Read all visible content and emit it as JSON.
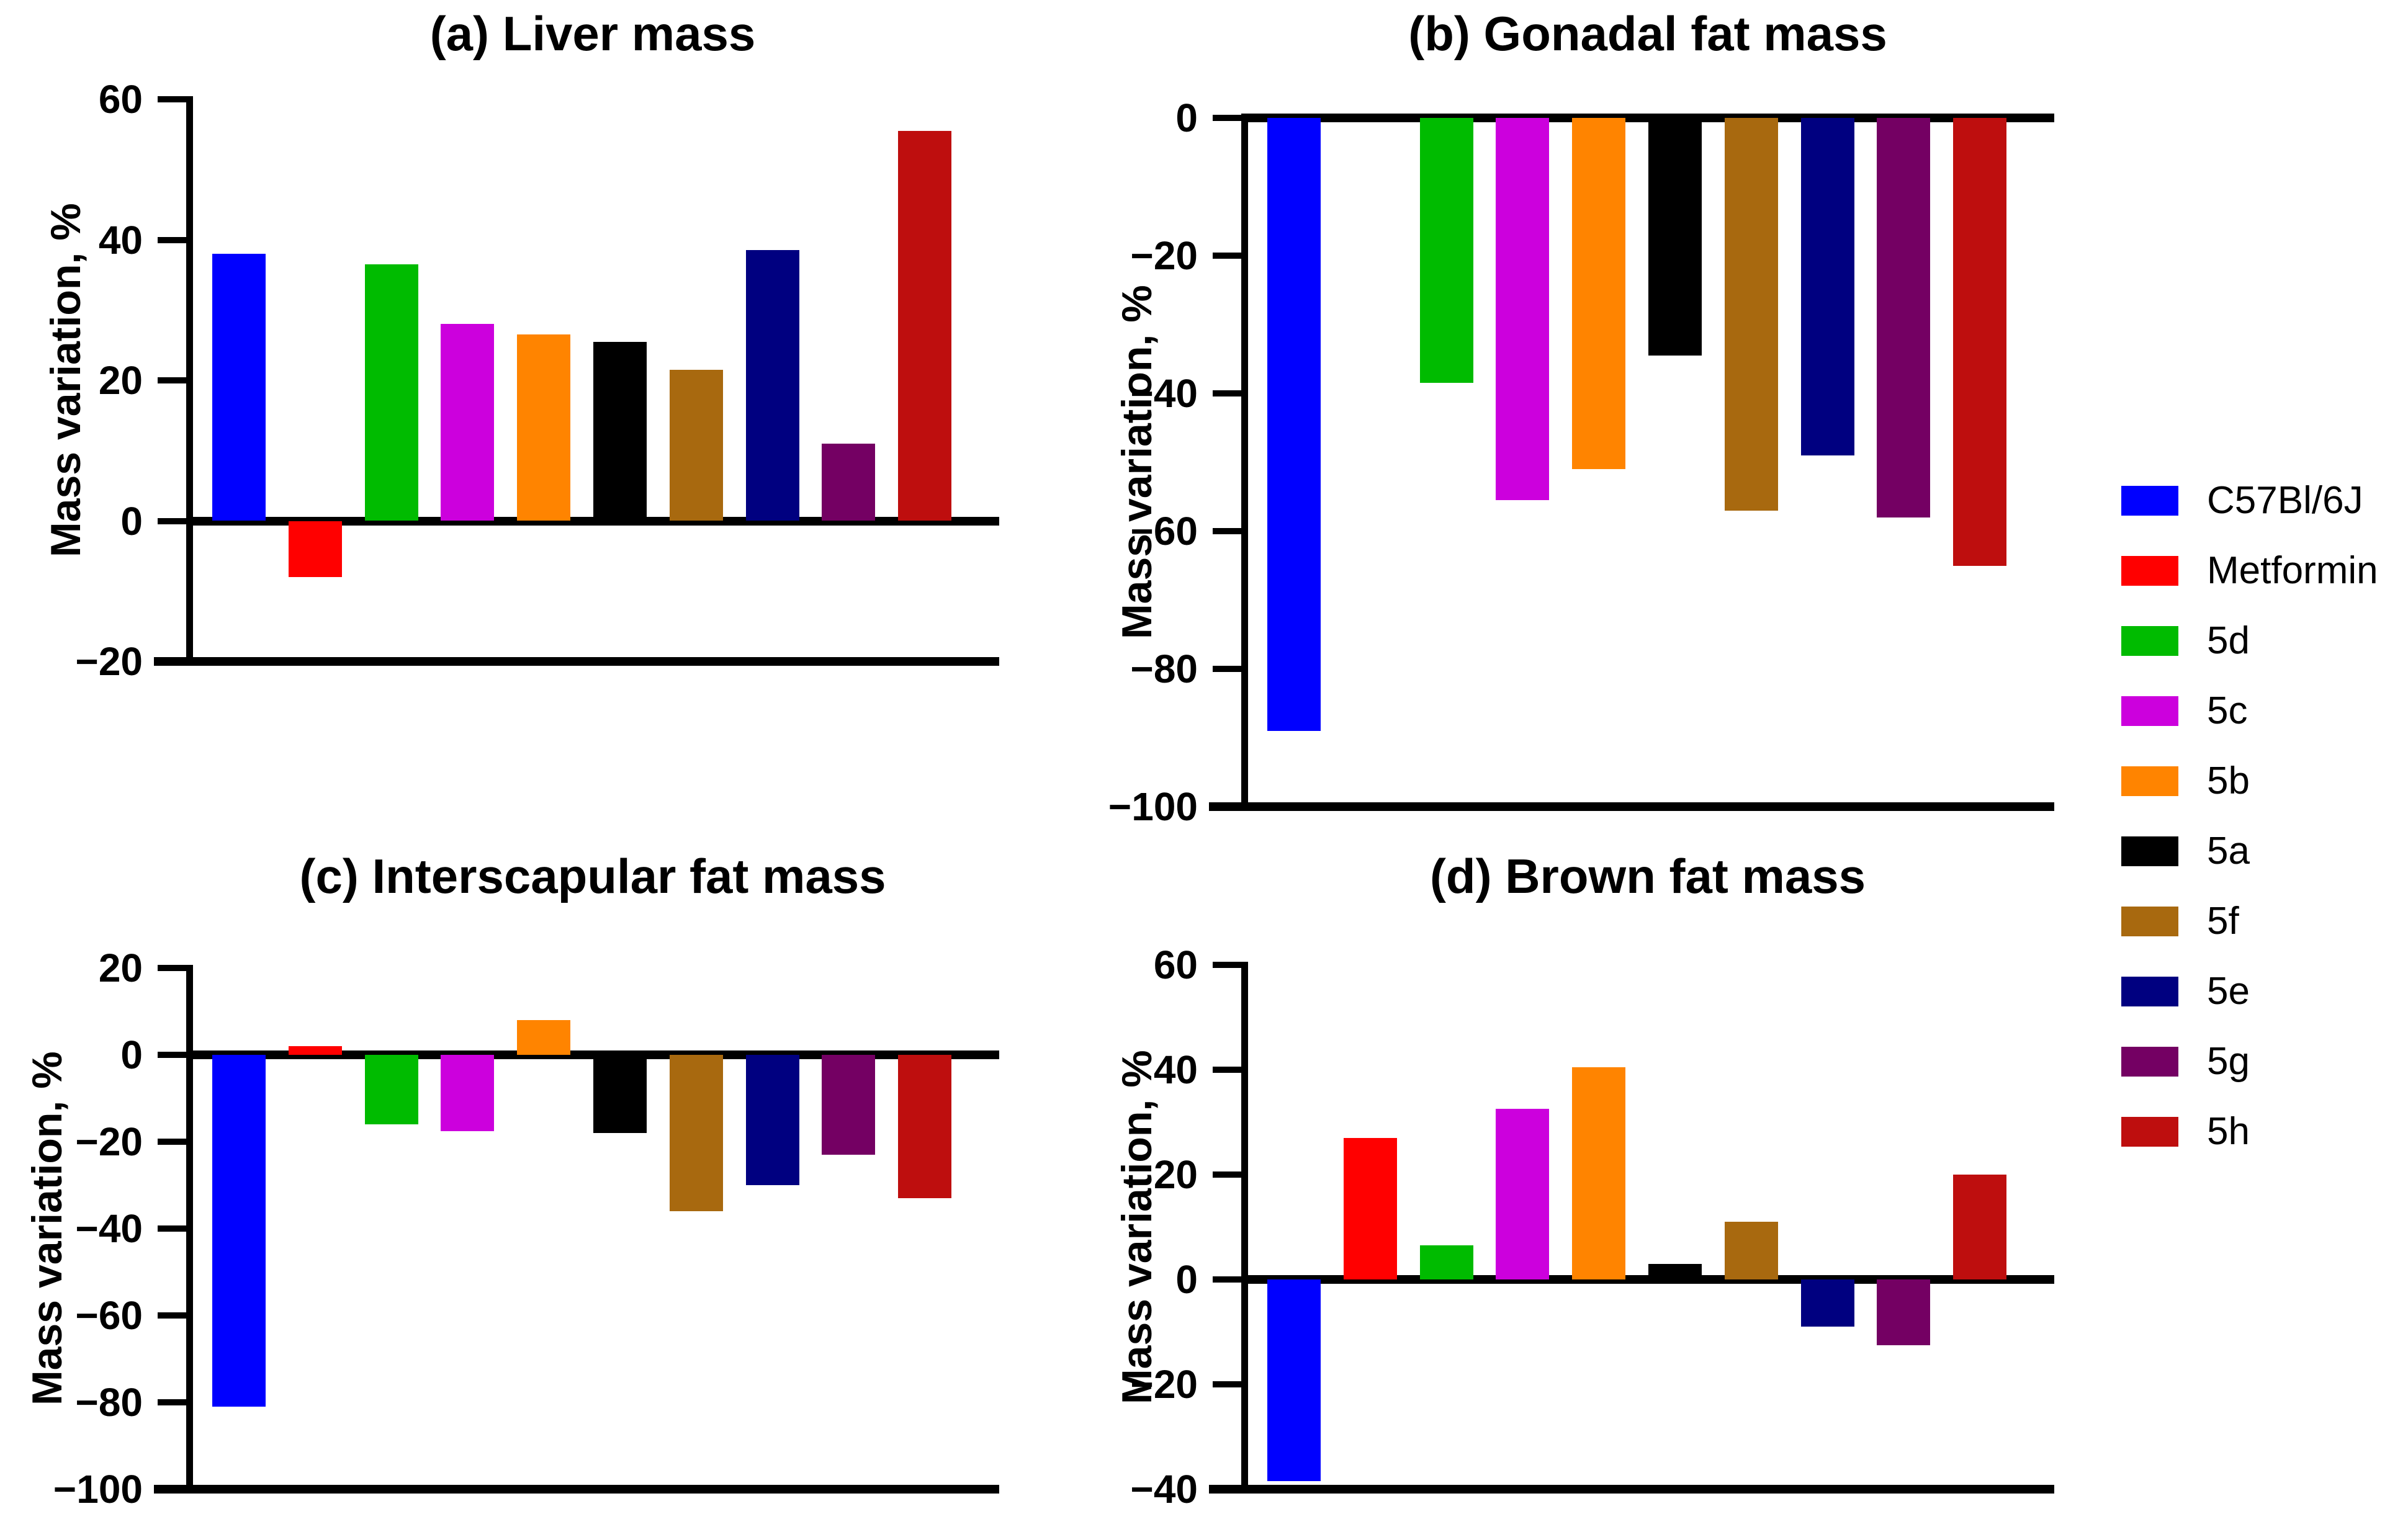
{
  "figure": {
    "legend": {
      "entries": [
        {
          "label": "C57Bl/6J",
          "color": "#0000FF"
        },
        {
          "label": "Metformin",
          "color": "#FF0000"
        },
        {
          "label": "5d",
          "color": "#00BB00"
        },
        {
          "label": "5c",
          "color": "#CC00DD"
        },
        {
          "label": "5b",
          "color": "#FF8400"
        },
        {
          "label": "5a",
          "color": "#000000"
        },
        {
          "label": "5f",
          "color": "#A8690F"
        },
        {
          "label": "5e",
          "color": "#000080"
        },
        {
          "label": "5g",
          "color": "#740063"
        },
        {
          "label": "5h",
          "color": "#BE0E0E"
        }
      ]
    }
  },
  "chart_data": [
    {
      "type": "bar",
      "title": "(a) Liver mass",
      "ylabel": "Mass variation, %",
      "categories": [
        "C57Bl/6J",
        "Metformin",
        "5d",
        "5c",
        "5b",
        "5a",
        "5f",
        "5e",
        "5g",
        "5h"
      ],
      "values": [
        38,
        -8,
        36.5,
        28,
        26.5,
        25.5,
        21.5,
        38.5,
        11,
        55.5
      ],
      "ylim": [
        -20,
        60
      ],
      "yticks": [
        60,
        40,
        20,
        0,
        -20
      ],
      "grid": false,
      "legend_position": "right-of-figure"
    },
    {
      "type": "bar",
      "title": "(b) Gonadal fat mass",
      "ylabel": "Mass variation, %",
      "categories": [
        "C57Bl/6J",
        "Metformin",
        "5d",
        "5c",
        "5b",
        "5a",
        "5f",
        "5e",
        "5g",
        "5h"
      ],
      "values": [
        -89,
        0,
        -38.5,
        -55.5,
        -51,
        -34.5,
        -57,
        -49,
        -58,
        -65
      ],
      "ylim": [
        -100,
        0
      ],
      "yticks": [
        0,
        -20,
        -40,
        -60,
        -80,
        -100
      ],
      "grid": false,
      "legend_position": "right-of-figure"
    },
    {
      "type": "bar",
      "title": "(c) Interscapular fat mass",
      "ylabel": "Mass variation, %",
      "categories": [
        "C57Bl/6J",
        "Metformin",
        "5d",
        "5c",
        "5b",
        "5a",
        "5f",
        "5e",
        "5g",
        "5h"
      ],
      "values": [
        -81,
        2,
        -16,
        -17.5,
        8,
        -18,
        -36,
        -30,
        -23,
        -33
      ],
      "ylim": [
        -100,
        20
      ],
      "yticks": [
        20,
        0,
        -20,
        -40,
        -60,
        -80,
        -100
      ],
      "grid": false,
      "legend_position": "right-of-figure"
    },
    {
      "type": "bar",
      "title": "(d) Brown fat mass",
      "ylabel": "Mass variation, %",
      "categories": [
        "C57Bl/6J",
        "Metformin",
        "5d",
        "5c",
        "5b",
        "5a",
        "5f",
        "5e",
        "5g",
        "5h"
      ],
      "values": [
        -38.5,
        27,
        6.5,
        32.5,
        40.5,
        3,
        11,
        -9,
        -12.5,
        20
      ],
      "ylim": [
        -40,
        60
      ],
      "yticks": [
        60,
        40,
        20,
        0,
        -20,
        -40
      ],
      "grid": false,
      "legend_position": "right-of-figure"
    }
  ]
}
